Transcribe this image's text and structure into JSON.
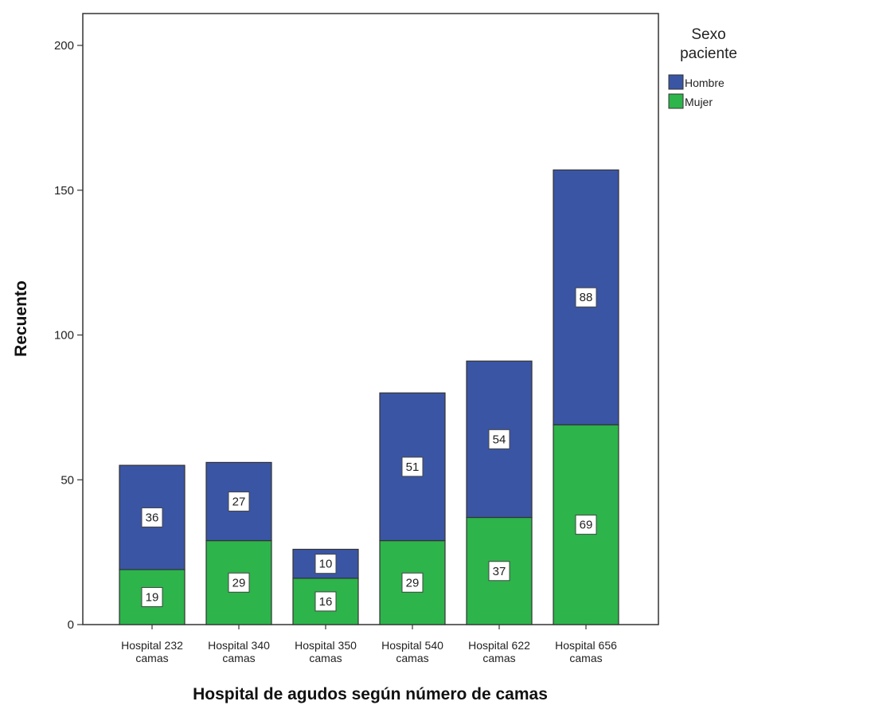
{
  "chart_data": {
    "type": "bar",
    "stacked": true,
    "xlabel": "Hospital de agudos según número de camas",
    "ylabel": "Recuento",
    "ylim": [
      0,
      200
    ],
    "yticks": [
      0,
      50,
      100,
      150,
      200
    ],
    "categories": [
      [
        "Hospital 232",
        "camas"
      ],
      [
        "Hospital 340",
        "camas"
      ],
      [
        "Hospital 350",
        "camas"
      ],
      [
        "Hospital 540",
        "camas"
      ],
      [
        "Hospital 622",
        "camas"
      ],
      [
        "Hospital 656",
        "camas"
      ]
    ],
    "series": [
      {
        "name": "Mujer",
        "color": "#2db44b",
        "values": [
          19,
          29,
          16,
          29,
          37,
          69
        ]
      },
      {
        "name": "Hombre",
        "color": "#3a55a4",
        "values": [
          36,
          27,
          10,
          51,
          54,
          88
        ]
      }
    ],
    "legend": {
      "title": [
        "Sexo",
        "paciente"
      ],
      "position": "top-right",
      "items": [
        {
          "name": "Hombre",
          "color": "#3a55a4"
        },
        {
          "name": "Mujer",
          "color": "#2db44b"
        }
      ]
    },
    "grid": false
  }
}
